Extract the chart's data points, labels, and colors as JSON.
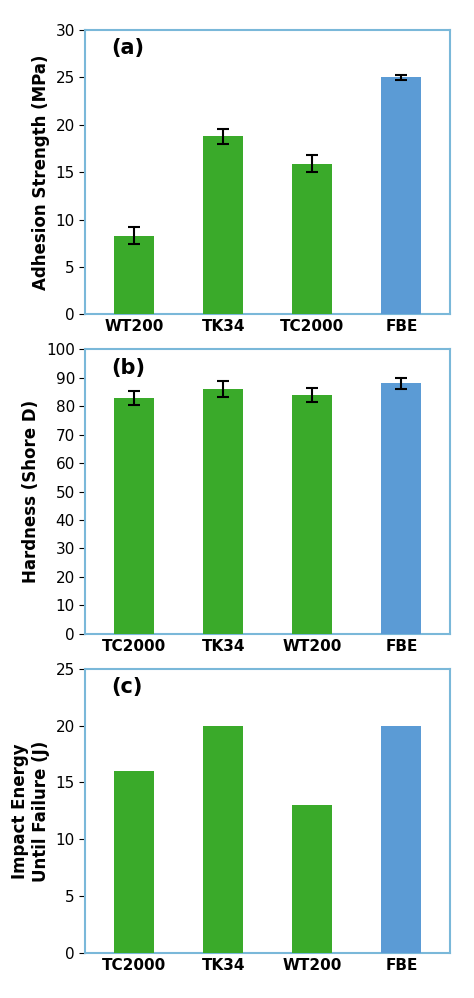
{
  "chart_a": {
    "categories": [
      "WT200",
      "TK34",
      "TC2000",
      "FBE"
    ],
    "values": [
      8.3,
      18.8,
      15.9,
      25.0
    ],
    "errors": [
      0.9,
      0.8,
      0.9,
      0.3
    ],
    "colors": [
      "#3aaa2a",
      "#3aaa2a",
      "#3aaa2a",
      "#5b9bd5"
    ],
    "ylabel": "Adhesion Strength (MPa)",
    "ylim": [
      0,
      30
    ],
    "yticks": [
      0,
      5,
      10,
      15,
      20,
      25,
      30
    ],
    "label": "(a)"
  },
  "chart_b": {
    "categories": [
      "TC2000",
      "TK34",
      "WT200",
      "FBE"
    ],
    "values": [
      83.0,
      86.0,
      84.0,
      88.0
    ],
    "errors": [
      2.5,
      2.8,
      2.5,
      2.0
    ],
    "colors": [
      "#3aaa2a",
      "#3aaa2a",
      "#3aaa2a",
      "#5b9bd5"
    ],
    "ylabel": "Hardness (Shore D)",
    "ylim": [
      0,
      100
    ],
    "yticks": [
      0,
      10,
      20,
      30,
      40,
      50,
      60,
      70,
      80,
      90,
      100
    ],
    "label": "(b)"
  },
  "chart_c": {
    "categories": [
      "TC2000",
      "TK34",
      "WT200",
      "FBE"
    ],
    "values": [
      16.0,
      20.0,
      13.0,
      20.0
    ],
    "errors": [
      0,
      0,
      0,
      0
    ],
    "colors": [
      "#3aaa2a",
      "#3aaa2a",
      "#3aaa2a",
      "#5b9bd5"
    ],
    "ylabel": "Impact Energy\nUntil Failure (J)",
    "ylim": [
      0,
      25
    ],
    "yticks": [
      0,
      5,
      10,
      15,
      20,
      25
    ],
    "label": "(c)"
  },
  "background_color": "#ffffff",
  "bar_width": 0.45,
  "spine_color": "#7ab8d9",
  "tick_label_fontsize": 11,
  "axis_label_fontsize": 12,
  "panel_label_fontsize": 15
}
